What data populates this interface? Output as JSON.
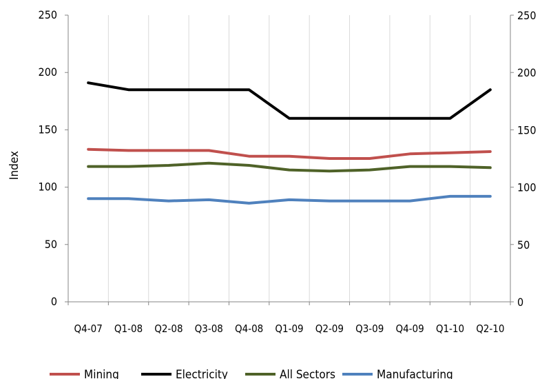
{
  "chart_data": {
    "type": "line",
    "title": "",
    "xlabel": "",
    "ylabel": "Index",
    "categories": [
      "Q4-07",
      "Q1-08",
      "Q2-08",
      "Q3-08",
      "Q4-08",
      "Q1-09",
      "Q2-09",
      "Q3-09",
      "Q4-09",
      "Q1-10",
      "Q2-10"
    ],
    "ylim": [
      0,
      250
    ],
    "y_ticks": [
      0,
      50,
      100,
      150,
      200,
      250
    ],
    "secondary_y_ticks": [
      0,
      50,
      100,
      150,
      200,
      250
    ],
    "grid": true,
    "legend_position": "bottom",
    "series": [
      {
        "name": "Mining",
        "color": "#c0504d",
        "values": [
          133,
          132,
          132,
          132,
          127,
          127,
          125,
          125,
          129,
          130,
          131
        ]
      },
      {
        "name": "Electricity",
        "color": "#000000",
        "values": [
          191,
          185,
          185,
          185,
          185,
          160,
          160,
          160,
          160,
          160,
          185
        ]
      },
      {
        "name": "All Sectors",
        "color": "#4f6228",
        "values": [
          118,
          118,
          119,
          121,
          119,
          115,
          114,
          115,
          118,
          118,
          117
        ]
      },
      {
        "name": "Manufacturing",
        "color": "#4f81bd",
        "values": [
          90,
          90,
          88,
          89,
          86,
          89,
          88,
          88,
          88,
          92,
          92
        ]
      }
    ]
  }
}
